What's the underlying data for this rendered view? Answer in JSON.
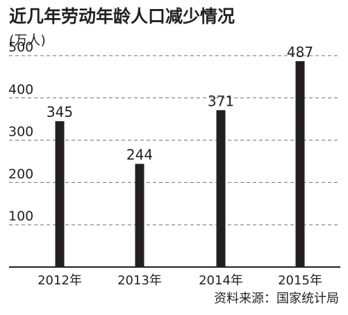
{
  "title": "近几年劳动年龄人口减少情况",
  "unit": "(万人)",
  "source": "资料来源：国家统计局",
  "colors": {
    "bar": "#231f20",
    "grid": "#6d6e71",
    "axis": "#231f20"
  },
  "chart_data": {
    "type": "bar",
    "title": "近几年劳动年龄人口减少情况",
    "ylabel": "(万人)",
    "xlabel": "",
    "categories": [
      "2012年",
      "2013年",
      "2014年",
      "2015年"
    ],
    "values": [
      345,
      244,
      371,
      487
    ],
    "data_labels": [
      "345",
      "244",
      "371",
      "487"
    ],
    "yticks": [
      100,
      200,
      300,
      400,
      500
    ],
    "ytick_labels": [
      "100",
      "200",
      "300",
      "400",
      "500"
    ],
    "ylim": [
      0,
      500
    ],
    "grid": "dashed horizontal",
    "legend": "none"
  }
}
